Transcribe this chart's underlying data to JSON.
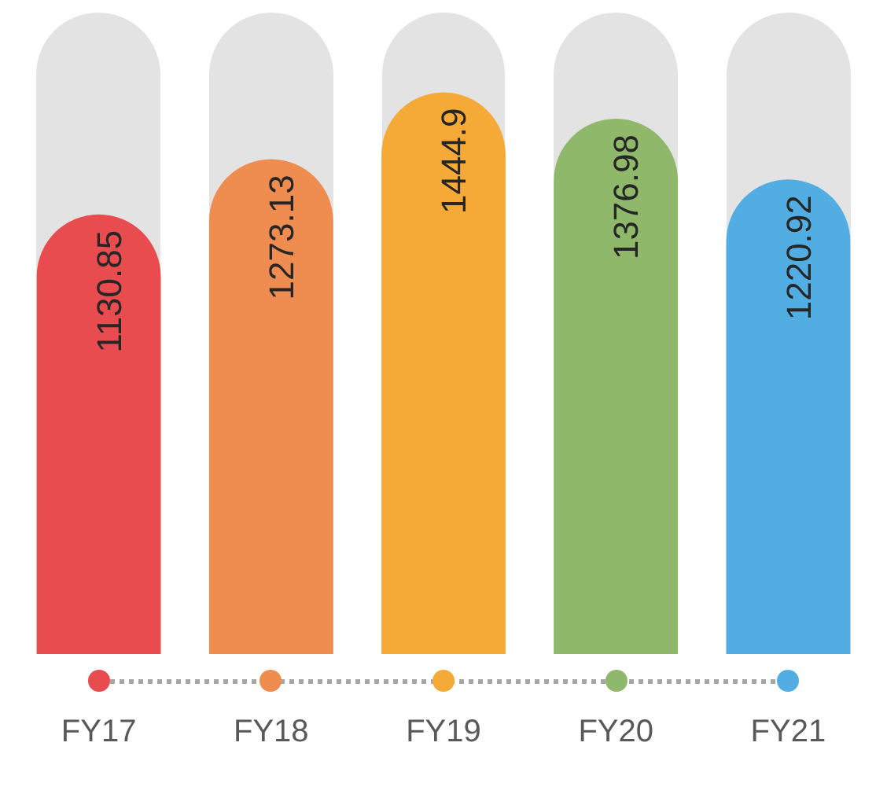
{
  "chart_data": {
    "type": "bar",
    "categories": [
      "FY17",
      "FY18",
      "FY19",
      "FY20",
      "FY21"
    ],
    "values": [
      1130.85,
      1273.13,
      1444.9,
      1376.98,
      1220.92
    ],
    "colors": [
      "#e84c4f",
      "#ef8c50",
      "#f5aa38",
      "#8fb86b",
      "#52ade2"
    ],
    "ylim": [
      0,
      1650
    ],
    "data_labels": true,
    "grid": false,
    "legend": false
  }
}
